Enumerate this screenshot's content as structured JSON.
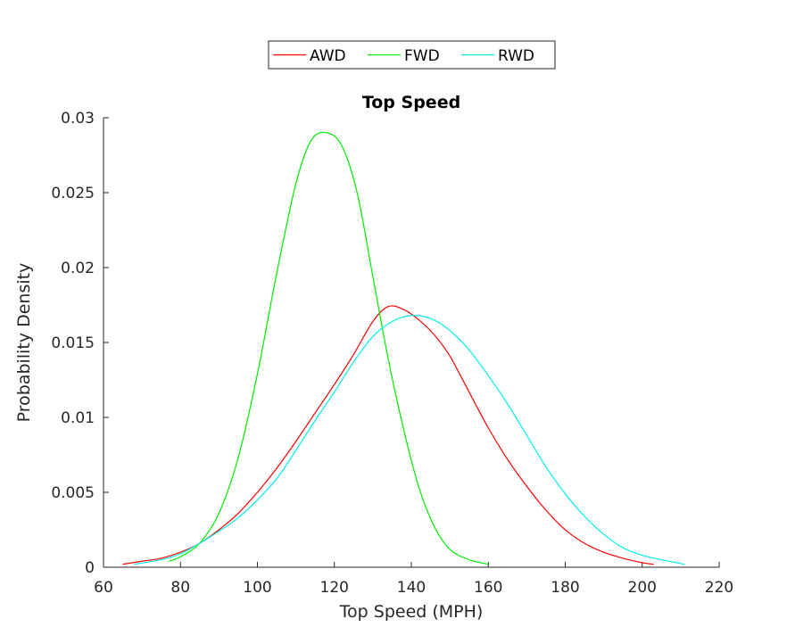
{
  "chart_data": {
    "type": "line",
    "title": "Top Speed",
    "xlabel": "Top Speed (MPH)",
    "ylabel": "Probability Density",
    "xlim": [
      60,
      220
    ],
    "ylim": [
      0,
      0.03
    ],
    "x_ticks": [
      "60",
      "80",
      "100",
      "120",
      "140",
      "160",
      "180",
      "200",
      "220"
    ],
    "y_ticks": [
      "0",
      "0.005",
      "0.01",
      "0.015",
      "0.02",
      "0.025",
      "0.03"
    ],
    "grid": false,
    "legend_position": "top-center, outside",
    "series": [
      {
        "name": "AWD",
        "color": "#ff0000",
        "x": [
          65,
          70,
          75,
          80,
          85,
          90,
          95,
          100,
          105,
          110,
          115,
          120,
          125,
          130,
          134,
          138,
          142,
          146,
          150,
          155,
          160,
          165,
          170,
          175,
          180,
          185,
          190,
          195,
          200,
          203
        ],
        "y": [
          0.0002,
          0.0004,
          0.0006,
          0.001,
          0.0016,
          0.0025,
          0.0036,
          0.005,
          0.0066,
          0.0084,
          0.0103,
          0.0122,
          0.0142,
          0.0164,
          0.0174,
          0.0172,
          0.0165,
          0.0155,
          0.0141,
          0.0117,
          0.0093,
          0.0072,
          0.0054,
          0.0038,
          0.0025,
          0.0016,
          0.001,
          0.0006,
          0.0003,
          0.0002
        ]
      },
      {
        "name": "FWD",
        "color": "#00ee00",
        "x": [
          77,
          80,
          85,
          90,
          95,
          100,
          105,
          110,
          114,
          118,
          122,
          126,
          130,
          134,
          138,
          142,
          146,
          150,
          155,
          160
        ],
        "y": [
          0.0004,
          0.0007,
          0.0016,
          0.0036,
          0.0073,
          0.0129,
          0.0196,
          0.0256,
          0.0285,
          0.029,
          0.0281,
          0.0249,
          0.0194,
          0.0139,
          0.0092,
          0.0053,
          0.0027,
          0.0012,
          0.0005,
          0.0002
        ]
      },
      {
        "name": "RWD",
        "color": "#00eeee",
        "x": [
          68,
          75,
          80,
          85,
          90,
          95,
          100,
          105,
          110,
          115,
          120,
          125,
          130,
          135,
          140,
          145,
          150,
          155,
          160,
          165,
          170,
          175,
          180,
          185,
          190,
          195,
          200,
          205,
          211
        ],
        "y": [
          0.0002,
          0.0005,
          0.0009,
          0.0016,
          0.0024,
          0.0033,
          0.0045,
          0.0059,
          0.0078,
          0.0098,
          0.0117,
          0.0137,
          0.0154,
          0.0164,
          0.0168,
          0.0166,
          0.0158,
          0.0145,
          0.0128,
          0.0109,
          0.0088,
          0.0067,
          0.0049,
          0.0034,
          0.0022,
          0.0013,
          0.0008,
          0.0005,
          0.0002
        ]
      }
    ]
  }
}
